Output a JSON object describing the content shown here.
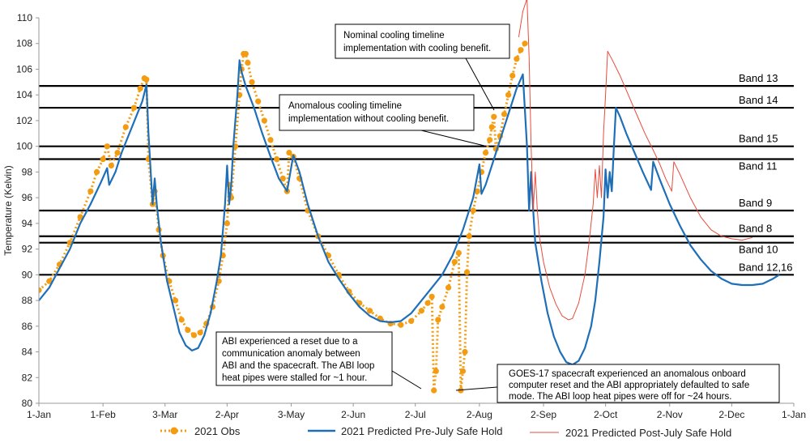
{
  "chart_data": {
    "type": "line",
    "title": "",
    "xlabel": "",
    "ylabel": "Temperature (Kelvin)",
    "ylim": [
      80,
      110
    ],
    "yticks": [
      80,
      82,
      84,
      86,
      88,
      90,
      92,
      94,
      96,
      98,
      100,
      102,
      104,
      106,
      108,
      110
    ],
    "xlim_day": [
      0,
      365
    ],
    "xticks": [
      {
        "label": "1-Jan",
        "day": 0
      },
      {
        "label": "1-Feb",
        "day": 31
      },
      {
        "label": "3-Mar",
        "day": 61
      },
      {
        "label": "2-Apr",
        "day": 91
      },
      {
        "label": "3-May",
        "day": 122
      },
      {
        "label": "2-Jun",
        "day": 152
      },
      {
        "label": "2-Jul",
        "day": 182
      },
      {
        "label": "2-Aug",
        "day": 213
      },
      {
        "label": "2-Sep",
        "day": 244
      },
      {
        "label": "2-Oct",
        "day": 274
      },
      {
        "label": "2-Nov",
        "day": 305
      },
      {
        "label": "2-Dec",
        "day": 335
      },
      {
        "label": "1-Jan",
        "day": 365
      }
    ],
    "bands": [
      {
        "name": "Band 13",
        "y": 104.7
      },
      {
        "name": "Band 14",
        "y": 103.0
      },
      {
        "name": "Band 15",
        "y": 100.0
      },
      {
        "name": "Band 11",
        "y": 99.0
      },
      {
        "name": "Band 9",
        "y": 95.0
      },
      {
        "name": "Band 8",
        "y": 93.0
      },
      {
        "name": "Band 10",
        "y": 92.5
      },
      {
        "name": "Band 12,16",
        "y": 90.0
      }
    ],
    "series": [
      {
        "name": "2021 Obs",
        "color": "#F39C12",
        "style": "dotted-markers",
        "points": [
          [
            0,
            88.8
          ],
          [
            5,
            89.5
          ],
          [
            10,
            90.8
          ],
          [
            15,
            92.5
          ],
          [
            20,
            94.5
          ],
          [
            25,
            96.5
          ],
          [
            28,
            98
          ],
          [
            31,
            99
          ],
          [
            33,
            100
          ],
          [
            35,
            98.5
          ],
          [
            38,
            99.5
          ],
          [
            42,
            101.5
          ],
          [
            46,
            103
          ],
          [
            49,
            104.5
          ],
          [
            51,
            105.3
          ],
          [
            52,
            105.2
          ],
          [
            53,
            99
          ],
          [
            55,
            95.5
          ],
          [
            56,
            96.5
          ],
          [
            58,
            93.5
          ],
          [
            60,
            91.5
          ],
          [
            63,
            89.5
          ],
          [
            66,
            88
          ],
          [
            69,
            86.5
          ],
          [
            72,
            85.7
          ],
          [
            75,
            85.3
          ],
          [
            78,
            85.5
          ],
          [
            81,
            86.2
          ],
          [
            84,
            87.5
          ],
          [
            87,
            89.5
          ],
          [
            89,
            91.5
          ],
          [
            91,
            94
          ],
          [
            92,
            97
          ],
          [
            93,
            96
          ],
          [
            95,
            100
          ],
          [
            97,
            104
          ],
          [
            98,
            106
          ],
          [
            99,
            107.2
          ],
          [
            100,
            107.2
          ],
          [
            101,
            106.5
          ],
          [
            103,
            105
          ],
          [
            106,
            103.5
          ],
          [
            109,
            102
          ],
          [
            112,
            100.5
          ],
          [
            115,
            99
          ],
          [
            118,
            97.5
          ],
          [
            120,
            96.5
          ],
          [
            121,
            99.5
          ],
          [
            123,
            99.2
          ],
          [
            126,
            97.5
          ],
          [
            130,
            95
          ],
          [
            135,
            93
          ],
          [
            140,
            91.5
          ],
          [
            145,
            90
          ],
          [
            150,
            88.7
          ],
          [
            155,
            87.8
          ],
          [
            160,
            87.2
          ],
          [
            165,
            86.6
          ],
          [
            170,
            86.2
          ],
          [
            175,
            86.1
          ],
          [
            180,
            86.4
          ],
          [
            185,
            87.2
          ],
          [
            188,
            87.8
          ],
          [
            190,
            88.3
          ],
          [
            191,
            81
          ],
          [
            192,
            82.5
          ],
          [
            193,
            86.5
          ],
          [
            195,
            87.5
          ],
          [
            198,
            89
          ],
          [
            201,
            91
          ],
          [
            203,
            91.7
          ],
          [
            204,
            81
          ],
          [
            205,
            82.5
          ],
          [
            206,
            84
          ],
          [
            207,
            90.2
          ],
          [
            208,
            93
          ],
          [
            210,
            95
          ],
          [
            212,
            96.5
          ],
          [
            214,
            98
          ],
          [
            216,
            99.5
          ],
          [
            218,
            100.5
          ],
          [
            219,
            101.5
          ],
          [
            220,
            102.3
          ],
          [
            221,
            99.8
          ],
          [
            223,
            100.8
          ],
          [
            225,
            102.5
          ],
          [
            227,
            104
          ],
          [
            229,
            105.5
          ],
          [
            231,
            106.8
          ],
          [
            233,
            107.5
          ],
          [
            235,
            108
          ]
        ]
      },
      {
        "name": "2021 Predicted Pre-July Safe Hold",
        "color": "#1F6FB8",
        "style": "line",
        "points": [
          [
            0,
            88
          ],
          [
            5,
            89
          ],
          [
            10,
            90.5
          ],
          [
            15,
            92
          ],
          [
            20,
            94
          ],
          [
            25,
            95.5
          ],
          [
            30,
            97.2
          ],
          [
            33,
            98.3
          ],
          [
            34,
            97
          ],
          [
            37,
            98
          ],
          [
            40,
            99.5
          ],
          [
            45,
            101.5
          ],
          [
            50,
            103.5
          ],
          [
            52,
            104.8
          ],
          [
            53,
            101
          ],
          [
            55,
            95.5
          ],
          [
            56,
            97.5
          ],
          [
            57,
            95.5
          ],
          [
            59,
            92.5
          ],
          [
            62,
            89.5
          ],
          [
            65,
            87.5
          ],
          [
            68,
            85.5
          ],
          [
            71,
            84.5
          ],
          [
            74,
            84.1
          ],
          [
            77,
            84.3
          ],
          [
            80,
            85.3
          ],
          [
            83,
            87
          ],
          [
            86,
            89.5
          ],
          [
            88,
            91.5
          ],
          [
            89,
            93.5
          ],
          [
            90,
            95.5
          ],
          [
            91,
            98.5
          ],
          [
            92,
            95.5
          ],
          [
            93,
            97
          ],
          [
            94,
            100
          ],
          [
            96,
            104
          ],
          [
            97,
            106.7
          ],
          [
            98,
            105.8
          ],
          [
            100,
            104.7
          ],
          [
            104,
            103
          ],
          [
            108,
            101
          ],
          [
            112,
            99.2
          ],
          [
            116,
            97.5
          ],
          [
            120,
            96.5
          ],
          [
            123,
            99.3
          ],
          [
            126,
            98
          ],
          [
            130,
            95.5
          ],
          [
            135,
            93
          ],
          [
            140,
            91
          ],
          [
            145,
            89.7
          ],
          [
            150,
            88.5
          ],
          [
            155,
            87.5
          ],
          [
            160,
            86.8
          ],
          [
            165,
            86.4
          ],
          [
            170,
            86.3
          ],
          [
            175,
            86.4
          ],
          [
            180,
            87
          ],
          [
            185,
            88
          ],
          [
            190,
            89
          ],
          [
            195,
            90
          ],
          [
            200,
            91.5
          ],
          [
            205,
            93.5
          ],
          [
            210,
            96
          ],
          [
            213,
            98.6
          ],
          [
            214,
            96.3
          ],
          [
            216,
            97
          ],
          [
            219,
            98.5
          ],
          [
            223,
            100.5
          ],
          [
            227,
            102.5
          ],
          [
            231,
            104.5
          ],
          [
            234,
            105.6
          ],
          [
            236,
            100
          ],
          [
            237,
            95
          ],
          [
            238,
            98
          ],
          [
            239,
            95
          ],
          [
            240,
            92.5
          ],
          [
            243,
            89.5
          ],
          [
            246,
            87
          ],
          [
            249,
            85.2
          ],
          [
            252,
            84
          ],
          [
            255,
            83.2
          ],
          [
            258,
            83
          ],
          [
            261,
            83.3
          ],
          [
            264,
            84.3
          ],
          [
            267,
            86
          ],
          [
            269,
            88
          ],
          [
            271,
            91
          ],
          [
            273,
            94.5
          ],
          [
            274,
            98.2
          ],
          [
            275,
            96
          ],
          [
            276,
            98
          ],
          [
            277,
            96.5
          ],
          [
            278,
            100
          ],
          [
            279,
            103
          ],
          [
            281,
            102.3
          ],
          [
            284,
            101
          ],
          [
            288,
            99.5
          ],
          [
            292,
            98
          ],
          [
            296,
            96.6
          ],
          [
            297,
            98.8
          ],
          [
            300,
            97.5
          ],
          [
            305,
            95.5
          ],
          [
            310,
            93.8
          ],
          [
            315,
            92.3
          ],
          [
            320,
            91.2
          ],
          [
            325,
            90.3
          ],
          [
            330,
            89.7
          ],
          [
            335,
            89.3
          ],
          [
            340,
            89.2
          ],
          [
            345,
            89.2
          ],
          [
            350,
            89.3
          ],
          [
            355,
            89.7
          ],
          [
            358,
            90
          ]
        ]
      },
      {
        "name": "2021 Predicted Post-July Safe Hold",
        "color": "#E74C3C",
        "style": "thin-line",
        "points": [
          [
            232,
            108.5
          ],
          [
            234,
            110.5
          ],
          [
            236,
            111.5
          ],
          [
            237,
            107
          ],
          [
            238,
            100
          ],
          [
            239,
            95
          ],
          [
            240,
            98
          ],
          [
            241,
            95
          ],
          [
            242,
            93
          ],
          [
            244,
            91
          ],
          [
            247,
            89
          ],
          [
            250,
            87.7
          ],
          [
            253,
            86.8
          ],
          [
            256,
            86.5
          ],
          [
            258,
            86.6
          ],
          [
            261,
            87.8
          ],
          [
            264,
            90
          ],
          [
            266,
            92.5
          ],
          [
            268,
            95.5
          ],
          [
            269,
            98.2
          ],
          [
            270,
            96
          ],
          [
            271,
            98.5
          ],
          [
            272,
            96
          ],
          [
            273,
            101
          ],
          [
            274,
            104
          ],
          [
            275,
            107.4
          ],
          [
            277,
            106.8
          ],
          [
            281,
            105.5
          ],
          [
            285,
            104
          ],
          [
            289,
            102.5
          ],
          [
            293,
            101
          ],
          [
            297,
            99.7
          ],
          [
            300,
            98.7
          ],
          [
            303,
            97.5
          ],
          [
            306,
            96.5
          ],
          [
            307,
            98.8
          ],
          [
            310,
            97.8
          ],
          [
            315,
            96
          ],
          [
            320,
            94.5
          ],
          [
            325,
            93.5
          ],
          [
            330,
            93
          ],
          [
            335,
            92.8
          ],
          [
            340,
            92.7
          ],
          [
            345,
            92.9
          ]
        ]
      }
    ],
    "annotations": [
      {
        "lines": [
          "Nominal cooling timeline",
          "implementation with cooling benefit."
        ]
      },
      {
        "lines": [
          "Anomalous cooling timeline",
          "implementation without cooling benefit."
        ]
      },
      {
        "lines": [
          "ABI experienced a reset due to a",
          "communication anomaly between",
          "ABI and the spacecraft.  The ABI loop",
          "heat pipes were stalled for ~1 hour."
        ]
      },
      {
        "lines": [
          "GOES-17 spacecraft experienced an anomalous onboard",
          "computer reset and the ABI appropriately defaulted to safe",
          "mode.  The ABI loop heat pipes were off for ~24 hours."
        ]
      }
    ],
    "legend": {
      "placement": "bottom"
    }
  }
}
